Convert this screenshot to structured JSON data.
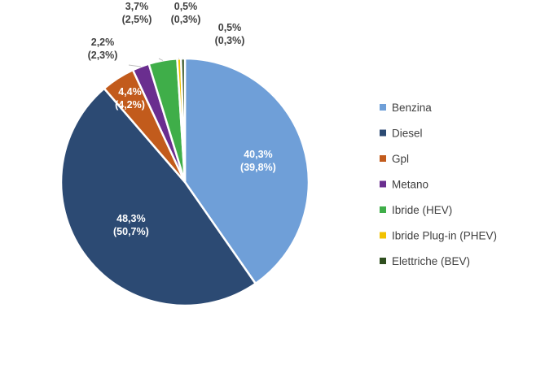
{
  "chart_data": {
    "type": "pie",
    "title": "",
    "legend_position": "right",
    "slices": [
      {
        "name": "Benzina",
        "value": 40.3,
        "label_main": "40,3%",
        "label_sub": "(39,8%)",
        "color": "#6f9fd8"
      },
      {
        "name": "Diesel",
        "value": 48.3,
        "label_main": "48,3%",
        "label_sub": "(50,7%)",
        "color": "#2c4a73"
      },
      {
        "name": "Gpl",
        "value": 4.4,
        "label_main": "4,4%",
        "label_sub": "(4,2%)",
        "color": "#c25b1c"
      },
      {
        "name": "Metano",
        "value": 2.2,
        "label_main": "2,2%",
        "label_sub": "(2,3%)",
        "color": "#6a2e8f"
      },
      {
        "name": "Ibride (HEV)",
        "value": 3.7,
        "label_main": "3,7%",
        "label_sub": "(2,5%)",
        "color": "#3fae49"
      },
      {
        "name": "Ibride Plug-in  (PHEV)",
        "value": 0.5,
        "label_main": "0,5%",
        "label_sub": "(0,3%)",
        "color": "#f2c200"
      },
      {
        "name": "Elettriche (BEV)",
        "value": 0.5,
        "label_main": "0,5%",
        "label_sub": "(0,3%)",
        "color": "#2f4f1f"
      }
    ]
  }
}
